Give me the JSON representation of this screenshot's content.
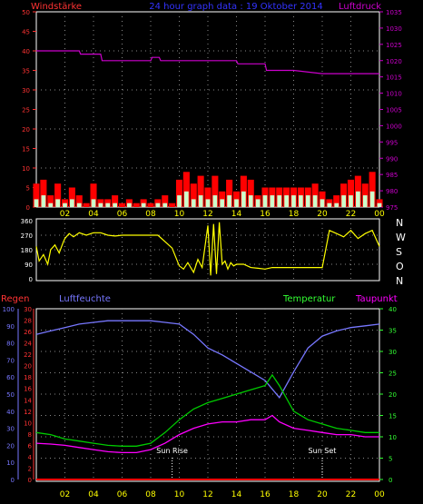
{
  "title": "24 hour graph data : 19 Oktober 2014",
  "colors": {
    "wind": "#ff0000",
    "gust": "#ccffcc",
    "pressure": "#cc00cc",
    "direction": "#ffff00",
    "rain": "#ff0000",
    "humidity": "#7777ff",
    "temperature": "#00cc00",
    "dewpoint": "#ff00ff",
    "title": "#3333ff",
    "axis_left_top": "#ff3333",
    "axis_right_top": "#cc00cc",
    "axis_white": "#ffffff",
    "axis_rain": "#ff3333",
    "axis_hum": "#7777ff",
    "axis_temp": "#33ff33",
    "axis_dew": "#ff00ff",
    "time_label": "#ffff00",
    "sun_label": "#ffffff"
  },
  "time_ticks": [
    "02",
    "04",
    "06",
    "08",
    "10",
    "12",
    "14",
    "16",
    "18",
    "20",
    "22",
    "00"
  ],
  "chart_data": [
    {
      "type": "line",
      "title": "24 hour graph data : 19 Oktober 2014",
      "left_label": "Windstärke",
      "right_label": "Luftdruck",
      "left_ticks": [
        "0",
        "5",
        "10",
        "15",
        "20",
        "25",
        "30",
        "35",
        "40",
        "45",
        "50"
      ],
      "right_ticks": [
        "975",
        "980",
        "985",
        "990",
        "995",
        "1000",
        "1005",
        "1010",
        "1015",
        "1020",
        "1025",
        "1030",
        "1035"
      ],
      "ylim_left": [
        0,
        50
      ],
      "ylim_right": [
        975,
        1035
      ],
      "x_hours": [
        0,
        2,
        4,
        6,
        8,
        10,
        12,
        14,
        16,
        18,
        20,
        22,
        24
      ],
      "series": [
        {
          "name": "Luftdruck",
          "axis": "right",
          "x": [
            0,
            3,
            3.1,
            4.5,
            4.6,
            8,
            8.1,
            8.6,
            8.7,
            10,
            12,
            14,
            14.1,
            16,
            16.1,
            18,
            20,
            24
          ],
          "y": [
            1023,
            1023,
            1022,
            1022,
            1020,
            1020,
            1021,
            1021,
            1020,
            1020,
            1020,
            1020,
            1019,
            1019,
            1017,
            1017,
            1016,
            1016
          ]
        },
        {
          "name": "Windstärke",
          "axis": "left",
          "x": [
            0,
            0.5,
            1,
            1.5,
            2,
            2.5,
            3,
            3.5,
            4,
            4.5,
            5,
            5.5,
            6,
            6.5,
            7,
            7.5,
            8,
            8.5,
            9,
            9.5,
            10,
            10.5,
            11,
            11.5,
            12,
            12.5,
            13,
            13.5,
            14,
            14.5,
            15,
            15.5,
            16,
            16.5,
            17,
            17.5,
            18,
            18.5,
            19,
            19.5,
            20,
            20.5,
            21,
            21.5,
            22,
            22.5,
            23,
            23.5,
            24
          ],
          "y": [
            6,
            7,
            3,
            6,
            2,
            5,
            3,
            1,
            6,
            2,
            2,
            3,
            1,
            2,
            1,
            2,
            1,
            2,
            3,
            1,
            7,
            9,
            6,
            8,
            5,
            8,
            4,
            7,
            4,
            8,
            7,
            3,
            5,
            5,
            5,
            5,
            5,
            5,
            5,
            6,
            4,
            2,
            3,
            6,
            7,
            8,
            6,
            9,
            2
          ]
        },
        {
          "name": "Böen",
          "axis": "left",
          "x": [
            0,
            0.5,
            1,
            1.5,
            2,
            2.5,
            3,
            3.5,
            4,
            4.5,
            5,
            5.5,
            6,
            6.5,
            7,
            7.5,
            8,
            8.5,
            9,
            9.5,
            10,
            10.5,
            11,
            11.5,
            12,
            12.5,
            13,
            13.5,
            14,
            14.5,
            15,
            15.5,
            16,
            16.5,
            17,
            17.5,
            18,
            18.5,
            19,
            19.5,
            20,
            20.5,
            21,
            21.5,
            22,
            22.5,
            23,
            23.5,
            24
          ],
          "y": [
            2,
            3,
            1,
            2,
            1,
            2,
            1,
            0,
            2,
            1,
            1,
            1,
            0,
            1,
            0,
            1,
            0,
            1,
            1,
            0,
            3,
            4,
            2,
            3,
            2,
            3,
            2,
            3,
            2,
            4,
            3,
            2,
            3,
            3,
            3,
            3,
            3,
            3,
            3,
            3,
            2,
            1,
            1,
            3,
            3,
            4,
            3,
            4,
            1
          ]
        }
      ]
    },
    {
      "type": "line",
      "left_ticks": [
        "0",
        "90",
        "180",
        "270",
        "360"
      ],
      "right_ticks": [
        "N",
        "W",
        "S",
        "O",
        "N"
      ],
      "ylim": [
        0,
        360
      ],
      "series": [
        {
          "name": "Windrichtung",
          "x": [
            0,
            0.2,
            0.5,
            0.8,
            1,
            1.3,
            1.6,
            1.9,
            2,
            2.3,
            2.6,
            3,
            3.5,
            4,
            4.5,
            5,
            5.5,
            6,
            6.5,
            7,
            7.5,
            8,
            8.5,
            9,
            9.5,
            10,
            10.3,
            10.6,
            11,
            11.3,
            11.6,
            12,
            12.2,
            12.4,
            12.6,
            12.8,
            13,
            13.2,
            13.4,
            13.6,
            13.8,
            14,
            14.5,
            15,
            15.5,
            16,
            16.5,
            17,
            17.5,
            18,
            18.5,
            19,
            19.5,
            20,
            20.5,
            21,
            21.5,
            22,
            22.5,
            23,
            23.5,
            24
          ],
          "y": [
            200,
            110,
            150,
            90,
            180,
            210,
            160,
            230,
            250,
            280,
            260,
            285,
            270,
            285,
            285,
            270,
            265,
            270,
            270,
            270,
            270,
            270,
            270,
            230,
            190,
            80,
            60,
            100,
            40,
            120,
            70,
            330,
            20,
            340,
            30,
            350,
            90,
            110,
            60,
            100,
            80,
            90,
            90,
            70,
            65,
            60,
            70,
            70,
            70,
            70,
            70,
            70,
            70,
            70,
            300,
            280,
            260,
            300,
            250,
            280,
            300,
            200
          ]
        }
      ]
    },
    {
      "type": "line",
      "left_label_rain": "Regen",
      "left_label_hum": "Luftfeuchte",
      "right_label_temp": "Temperatur",
      "right_label_dew": "Taupunkt",
      "hum_ticks": [
        "0",
        "10",
        "20",
        "30",
        "40",
        "50",
        "60",
        "70",
        "80",
        "90",
        "100"
      ],
      "rain_ticks": [
        "0",
        "2",
        "4",
        "6",
        "8",
        "10",
        "12",
        "14",
        "16",
        "18",
        "20",
        "22",
        "24",
        "26",
        "28",
        "30"
      ],
      "temp_ticks": [
        "0",
        "5",
        "10",
        "15",
        "20",
        "25",
        "30",
        "35",
        "40"
      ],
      "ylim_hum": [
        0,
        100
      ],
      "ylim_temp": [
        0,
        40
      ],
      "ylim_rain": [
        0,
        30
      ],
      "annotations": [
        {
          "label": "Sun Rise",
          "x": 9.5
        },
        {
          "label": "Sun Set",
          "x": 20
        }
      ],
      "series": [
        {
          "name": "Luftfeuchte",
          "axis": "hum",
          "x": [
            0,
            1,
            2,
            3,
            4,
            5,
            6,
            7,
            8,
            9,
            10,
            11,
            12,
            13,
            14,
            15,
            16,
            17,
            18,
            19,
            20,
            21,
            22,
            23,
            24
          ],
          "y": [
            85,
            87,
            89,
            91,
            92,
            93,
            93,
            93,
            93,
            92,
            91,
            85,
            77,
            73,
            68,
            63,
            58,
            48,
            63,
            77,
            84,
            87,
            89,
            90,
            91
          ]
        },
        {
          "name": "Temperatur",
          "axis": "temp",
          "x": [
            0,
            1,
            2,
            3,
            4,
            5,
            6,
            7,
            8,
            9,
            10,
            11,
            12,
            13,
            14,
            15,
            16,
            16.5,
            17,
            18,
            19,
            20,
            21,
            22,
            23,
            24
          ],
          "y": [
            11,
            10.5,
            9.5,
            9,
            8.5,
            8,
            7.8,
            7.8,
            8.5,
            11,
            14,
            16.5,
            18,
            19,
            20,
            21,
            22,
            24.5,
            22,
            16,
            14,
            13,
            12,
            11.5,
            11,
            11
          ]
        },
        {
          "name": "Taupunkt",
          "axis": "temp",
          "x": [
            0,
            1,
            2,
            3,
            4,
            5,
            6,
            7,
            8,
            9,
            10,
            11,
            12,
            13,
            14,
            15,
            16,
            16.5,
            17,
            18,
            19,
            20,
            21,
            22,
            23,
            24
          ],
          "y": [
            8.5,
            8.3,
            8,
            7.5,
            7,
            6.5,
            6.3,
            6.3,
            7,
            8.5,
            10.5,
            12,
            13,
            13.5,
            13.5,
            14,
            14,
            15,
            13.5,
            12,
            11.5,
            11,
            10.5,
            10.5,
            10,
            10
          ]
        },
        {
          "name": "Regen",
          "axis": "rain",
          "x": [
            0,
            24
          ],
          "y": [
            0,
            0
          ]
        }
      ]
    }
  ]
}
